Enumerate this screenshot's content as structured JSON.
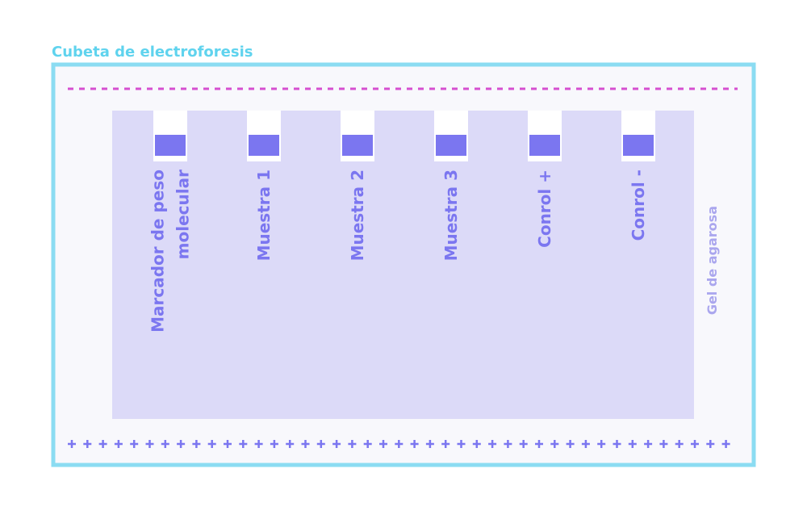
{
  "title": "Cubeta de electroforesis",
  "lanes": [
    {
      "lines": [
        "Marcador de peso",
        "molecular"
      ]
    },
    {
      "lines": [
        "Muestra 1"
      ]
    },
    {
      "lines": [
        "Muestra 2"
      ]
    },
    {
      "lines": [
        "Muestra 3"
      ]
    },
    {
      "lines": [
        "Conrol +"
      ]
    },
    {
      "lines": [
        "Conrol -"
      ]
    }
  ],
  "gel_label": "Gel de agarosa"
}
